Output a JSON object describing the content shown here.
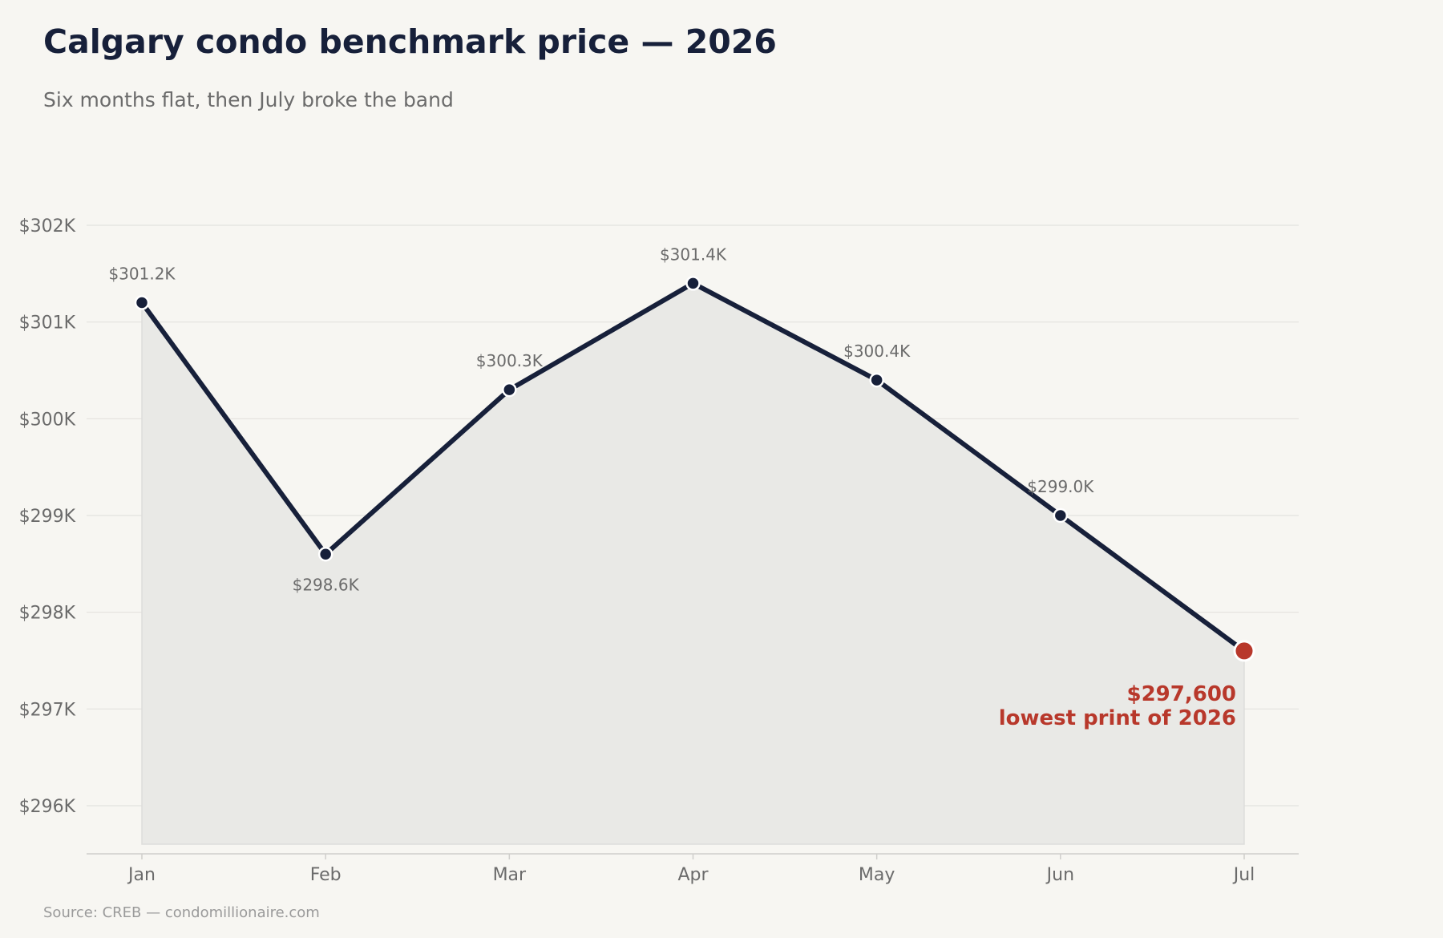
{
  "header": {
    "title": "Calgary condo benchmark price — 2026",
    "subtitle": "Six months flat, then July broke the band"
  },
  "footer": {
    "source": "Source: CREB — condomillionaire.com"
  },
  "colors": {
    "line": "#17203a",
    "highlight": "#b8382b",
    "area": "#e9e9e6",
    "grid": "#e3e2de"
  },
  "chart_data": {
    "type": "line",
    "title": "Calgary condo benchmark price — 2026",
    "subtitle": "Six months flat, then July broke the band",
    "xlabel": "",
    "ylabel": "",
    "categories": [
      "Jan",
      "Feb",
      "Mar",
      "Apr",
      "May",
      "Jun",
      "Jul"
    ],
    "series": [
      {
        "values": [
          301200,
          298600,
          300300,
          301400,
          300400,
          299000,
          297600
        ],
        "labels": [
          "$301.2K",
          "$298.6K",
          "$300.3K",
          "$301.4K",
          "$300.4K",
          "$299.0K",
          ""
        ]
      }
    ],
    "ylim": [
      295500,
      302300
    ],
    "yticks": [
      296000,
      297000,
      298000,
      299000,
      300000,
      301000,
      302000
    ],
    "ytick_labels": [
      "$296K",
      "$297K",
      "$298K",
      "$299K",
      "$300K",
      "$301K",
      "$302K"
    ],
    "grid": true,
    "area_fill": true,
    "annotation": {
      "category": "Jul",
      "line1": "$297,600",
      "line2": "lowest print of 2026"
    }
  }
}
